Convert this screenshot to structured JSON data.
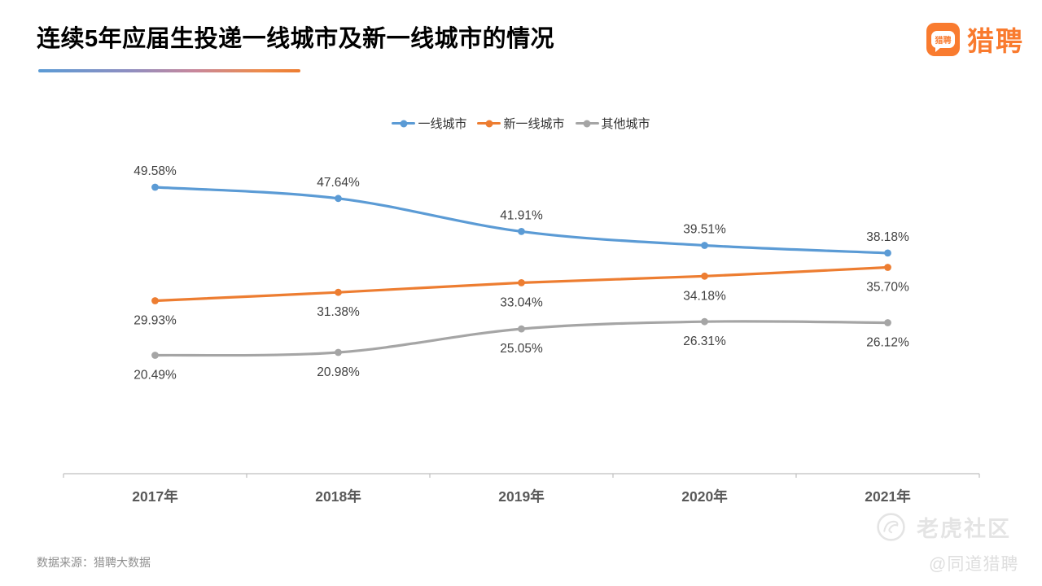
{
  "title": "连续5年应届生投递一线城市及新一线城市的情况",
  "logo": {
    "badge_text": "猎聘",
    "brand_text": "猎聘",
    "color": "#F97B2F"
  },
  "chart_data": {
    "type": "line",
    "title": "连续5年应届生投递一线城市及新一线城市的情况",
    "categories": [
      "2017年",
      "2018年",
      "2019年",
      "2020年",
      "2021年"
    ],
    "series": [
      {
        "name": "一线城市",
        "color": "#5B9BD5",
        "values": [
          49.58,
          47.64,
          41.91,
          39.51,
          38.18
        ],
        "labels": [
          "49.58%",
          "47.64%",
          "41.91%",
          "39.51%",
          "38.18%"
        ],
        "label_position": "above"
      },
      {
        "name": "新一线城市",
        "color": "#ED7D31",
        "values": [
          29.93,
          31.38,
          33.04,
          34.18,
          35.7
        ],
        "labels": [
          "29.93%",
          "31.38%",
          "33.04%",
          "34.18%",
          "35.70%"
        ],
        "label_position": "below"
      },
      {
        "name": "其他城市",
        "color": "#A5A5A5",
        "values": [
          20.49,
          20.98,
          25.05,
          26.31,
          26.12
        ],
        "labels": [
          "20.49%",
          "20.98%",
          "25.05%",
          "26.31%",
          "26.12%"
        ],
        "label_position": "below"
      }
    ],
    "xlabel": "",
    "ylabel": "",
    "ylim": [
      0,
      60
    ],
    "y_axis_visible": false,
    "grid": false,
    "legend_position": "top-center",
    "smooth": true,
    "axis_color": "#BFBFBF"
  },
  "footer": {
    "source": "数据来源：猎聘大数据"
  },
  "watermarks": {
    "community": "老虎社区",
    "handle": "@同道猎聘"
  }
}
